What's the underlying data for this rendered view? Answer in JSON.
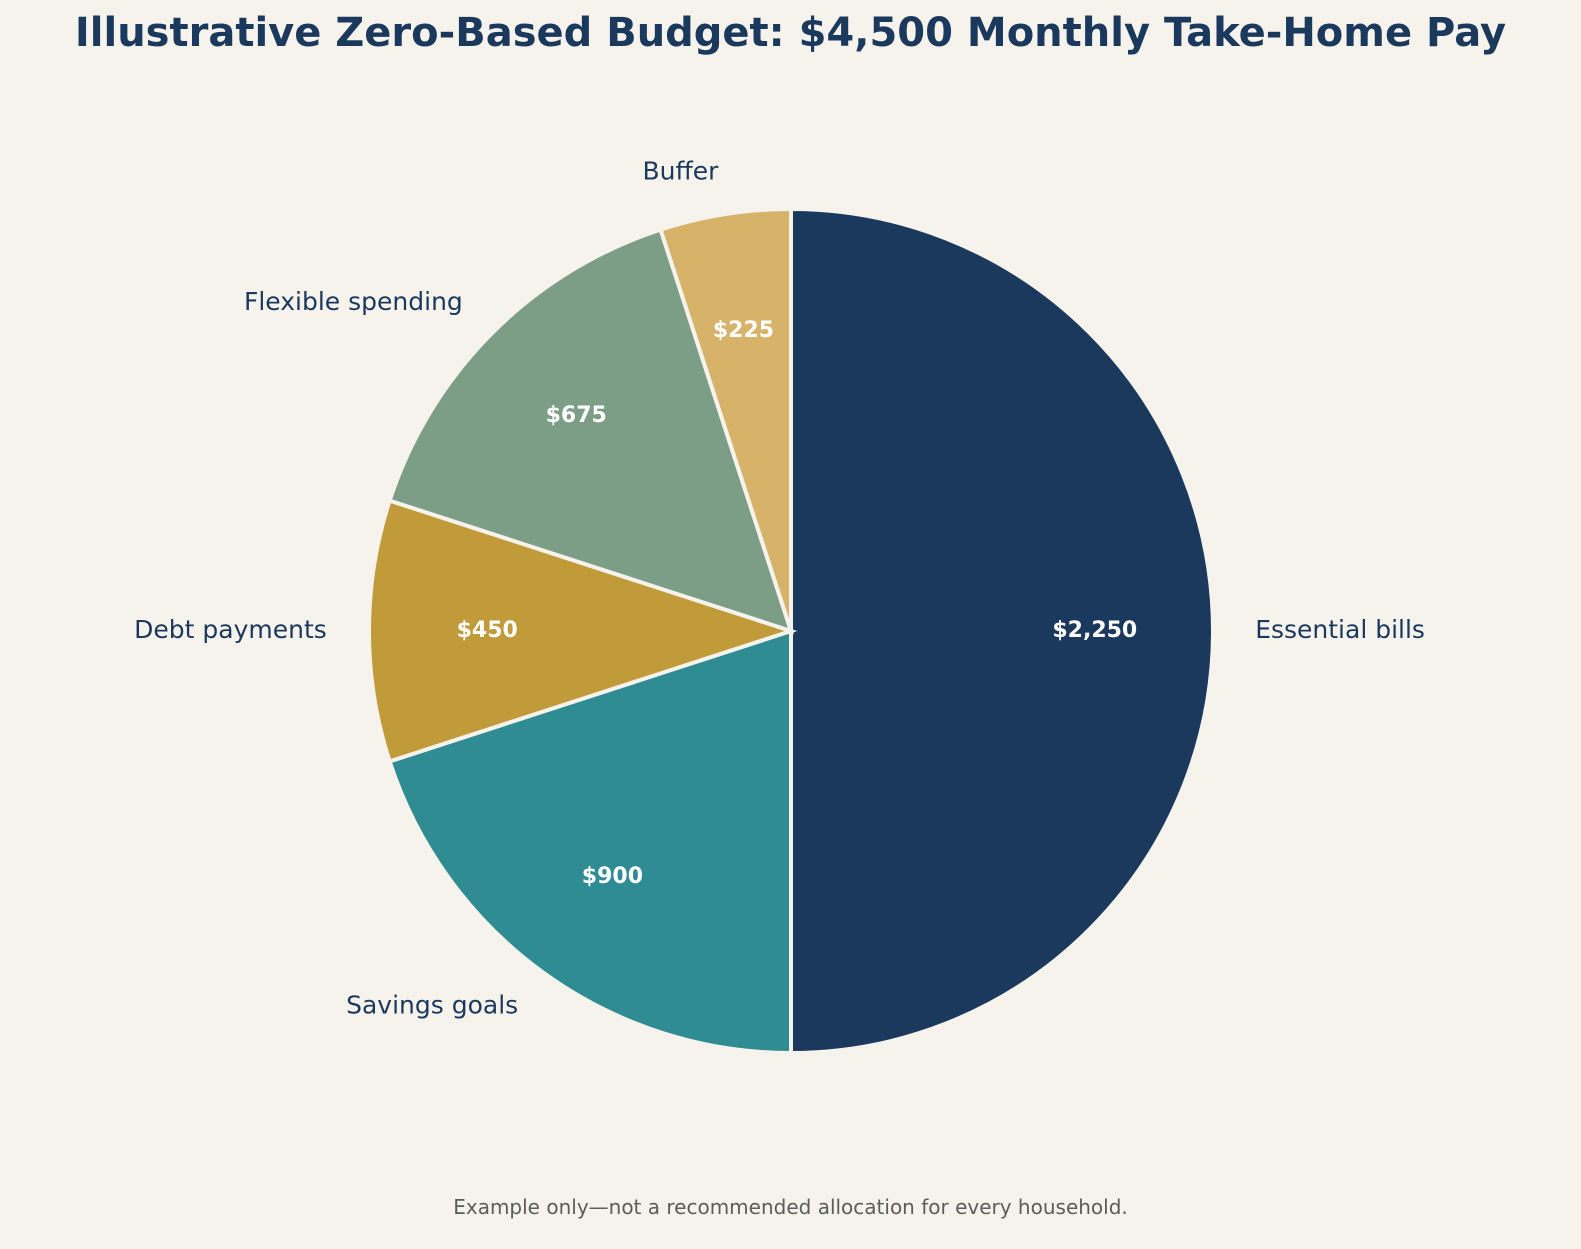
{
  "chart_data": {
    "type": "pie",
    "title": "Illustrative Zero-Based Budget: $4,500 Monthly Take-Home Pay",
    "footnote": "Example only—not a recommended allocation for every household.",
    "start_angle_deg": 90,
    "direction": "clockwise",
    "slices": [
      {
        "label": "Essential bills",
        "value": 2250,
        "value_label": "$2,250",
        "color": "#1b395c"
      },
      {
        "label": "Savings goals",
        "value": 900,
        "value_label": "$900",
        "color": "#2e8c92"
      },
      {
        "label": "Debt payments",
        "value": 450,
        "value_label": "$450",
        "color": "#c19a39"
      },
      {
        "label": "Flexible spending",
        "value": 675,
        "value_label": "$675",
        "color": "#7d9e86"
      },
      {
        "label": "Buffer",
        "value": 225,
        "value_label": "$225",
        "color": "#d6b368"
      }
    ],
    "edge_color": "#f6f3ed",
    "text_color": "#1b395c",
    "value_text_color": "#ffffff"
  }
}
